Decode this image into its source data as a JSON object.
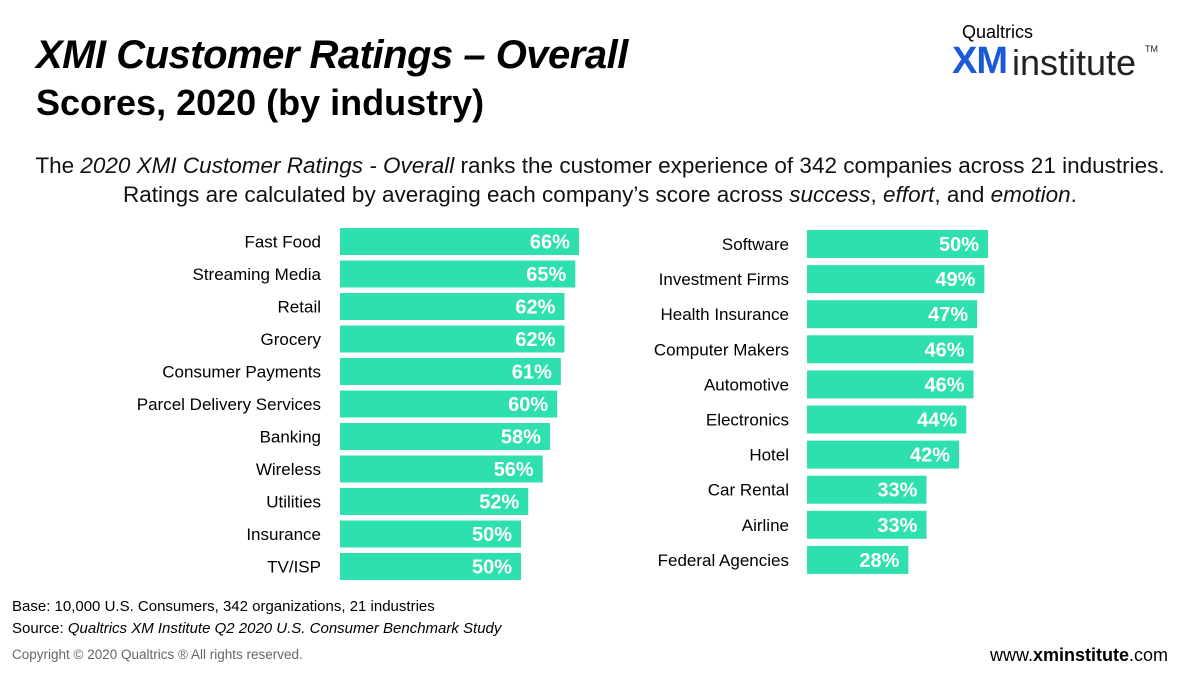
{
  "header": {
    "title_line1": "XMI Customer Ratings – Overall",
    "title_line2": "Scores, 2020 (by industry)"
  },
  "logo": {
    "brand": "Qualtrics",
    "xm": "XM",
    "institute": "institute",
    "tm": "TM"
  },
  "description": {
    "p1": "The ",
    "p2": "2020 XMI Customer Ratings - Overall",
    "p3": " ranks the customer experience of 342 companies across 21 industries. Ratings are calculated by averaging each company’s score across ",
    "p4": "success",
    "p5": ", ",
    "p6": "effort",
    "p7": ", and ",
    "p8": "emotion",
    "p9": "."
  },
  "colors": {
    "bar": "#2ee0ad",
    "label": "#ffffff",
    "category_text": "#000000"
  },
  "chart_data": [
    {
      "type": "bar",
      "orientation": "horizontal",
      "title": "",
      "xlim": [
        0,
        100
      ],
      "categories": [
        "Fast Food",
        "Streaming Media",
        "Retail",
        "Grocery",
        "Consumer Payments",
        "Parcel Delivery Services",
        "Banking",
        "Wireless",
        "Utilities",
        "Insurance",
        "TV/ISP"
      ],
      "values": [
        66,
        65,
        62,
        62,
        61,
        60,
        58,
        56,
        52,
        50,
        50
      ],
      "labels": [
        "66%",
        "65%",
        "62%",
        "62%",
        "61%",
        "60%",
        "58%",
        "56%",
        "52%",
        "50%",
        "50%"
      ]
    },
    {
      "type": "bar",
      "orientation": "horizontal",
      "title": "",
      "xlim": [
        0,
        100
      ],
      "categories": [
        "Software",
        "Investment Firms",
        "Health Insurance",
        "Computer Makers",
        "Automotive",
        "Electronics",
        "Hotel",
        "Car Rental",
        "Airline",
        "Federal Agencies"
      ],
      "values": [
        50,
        49,
        47,
        46,
        46,
        44,
        42,
        33,
        33,
        28
      ],
      "labels": [
        "50%",
        "49%",
        "47%",
        "46%",
        "46%",
        "44%",
        "42%",
        "33%",
        "33%",
        "28%"
      ]
    }
  ],
  "footer": {
    "base": "Base: 10,000 U.S. Consumers, 342 organizations, 21 industries",
    "source_label": "Source: ",
    "source_text": "Qualtrics XM Institute Q2 2020 U.S. Consumer Benchmark Study",
    "copyright": "Copyright © 2020 Qualtrics ® All rights reserved.",
    "url_prefix": "www.",
    "url_bold": "xminstitute",
    "url_suffix": ".com"
  }
}
